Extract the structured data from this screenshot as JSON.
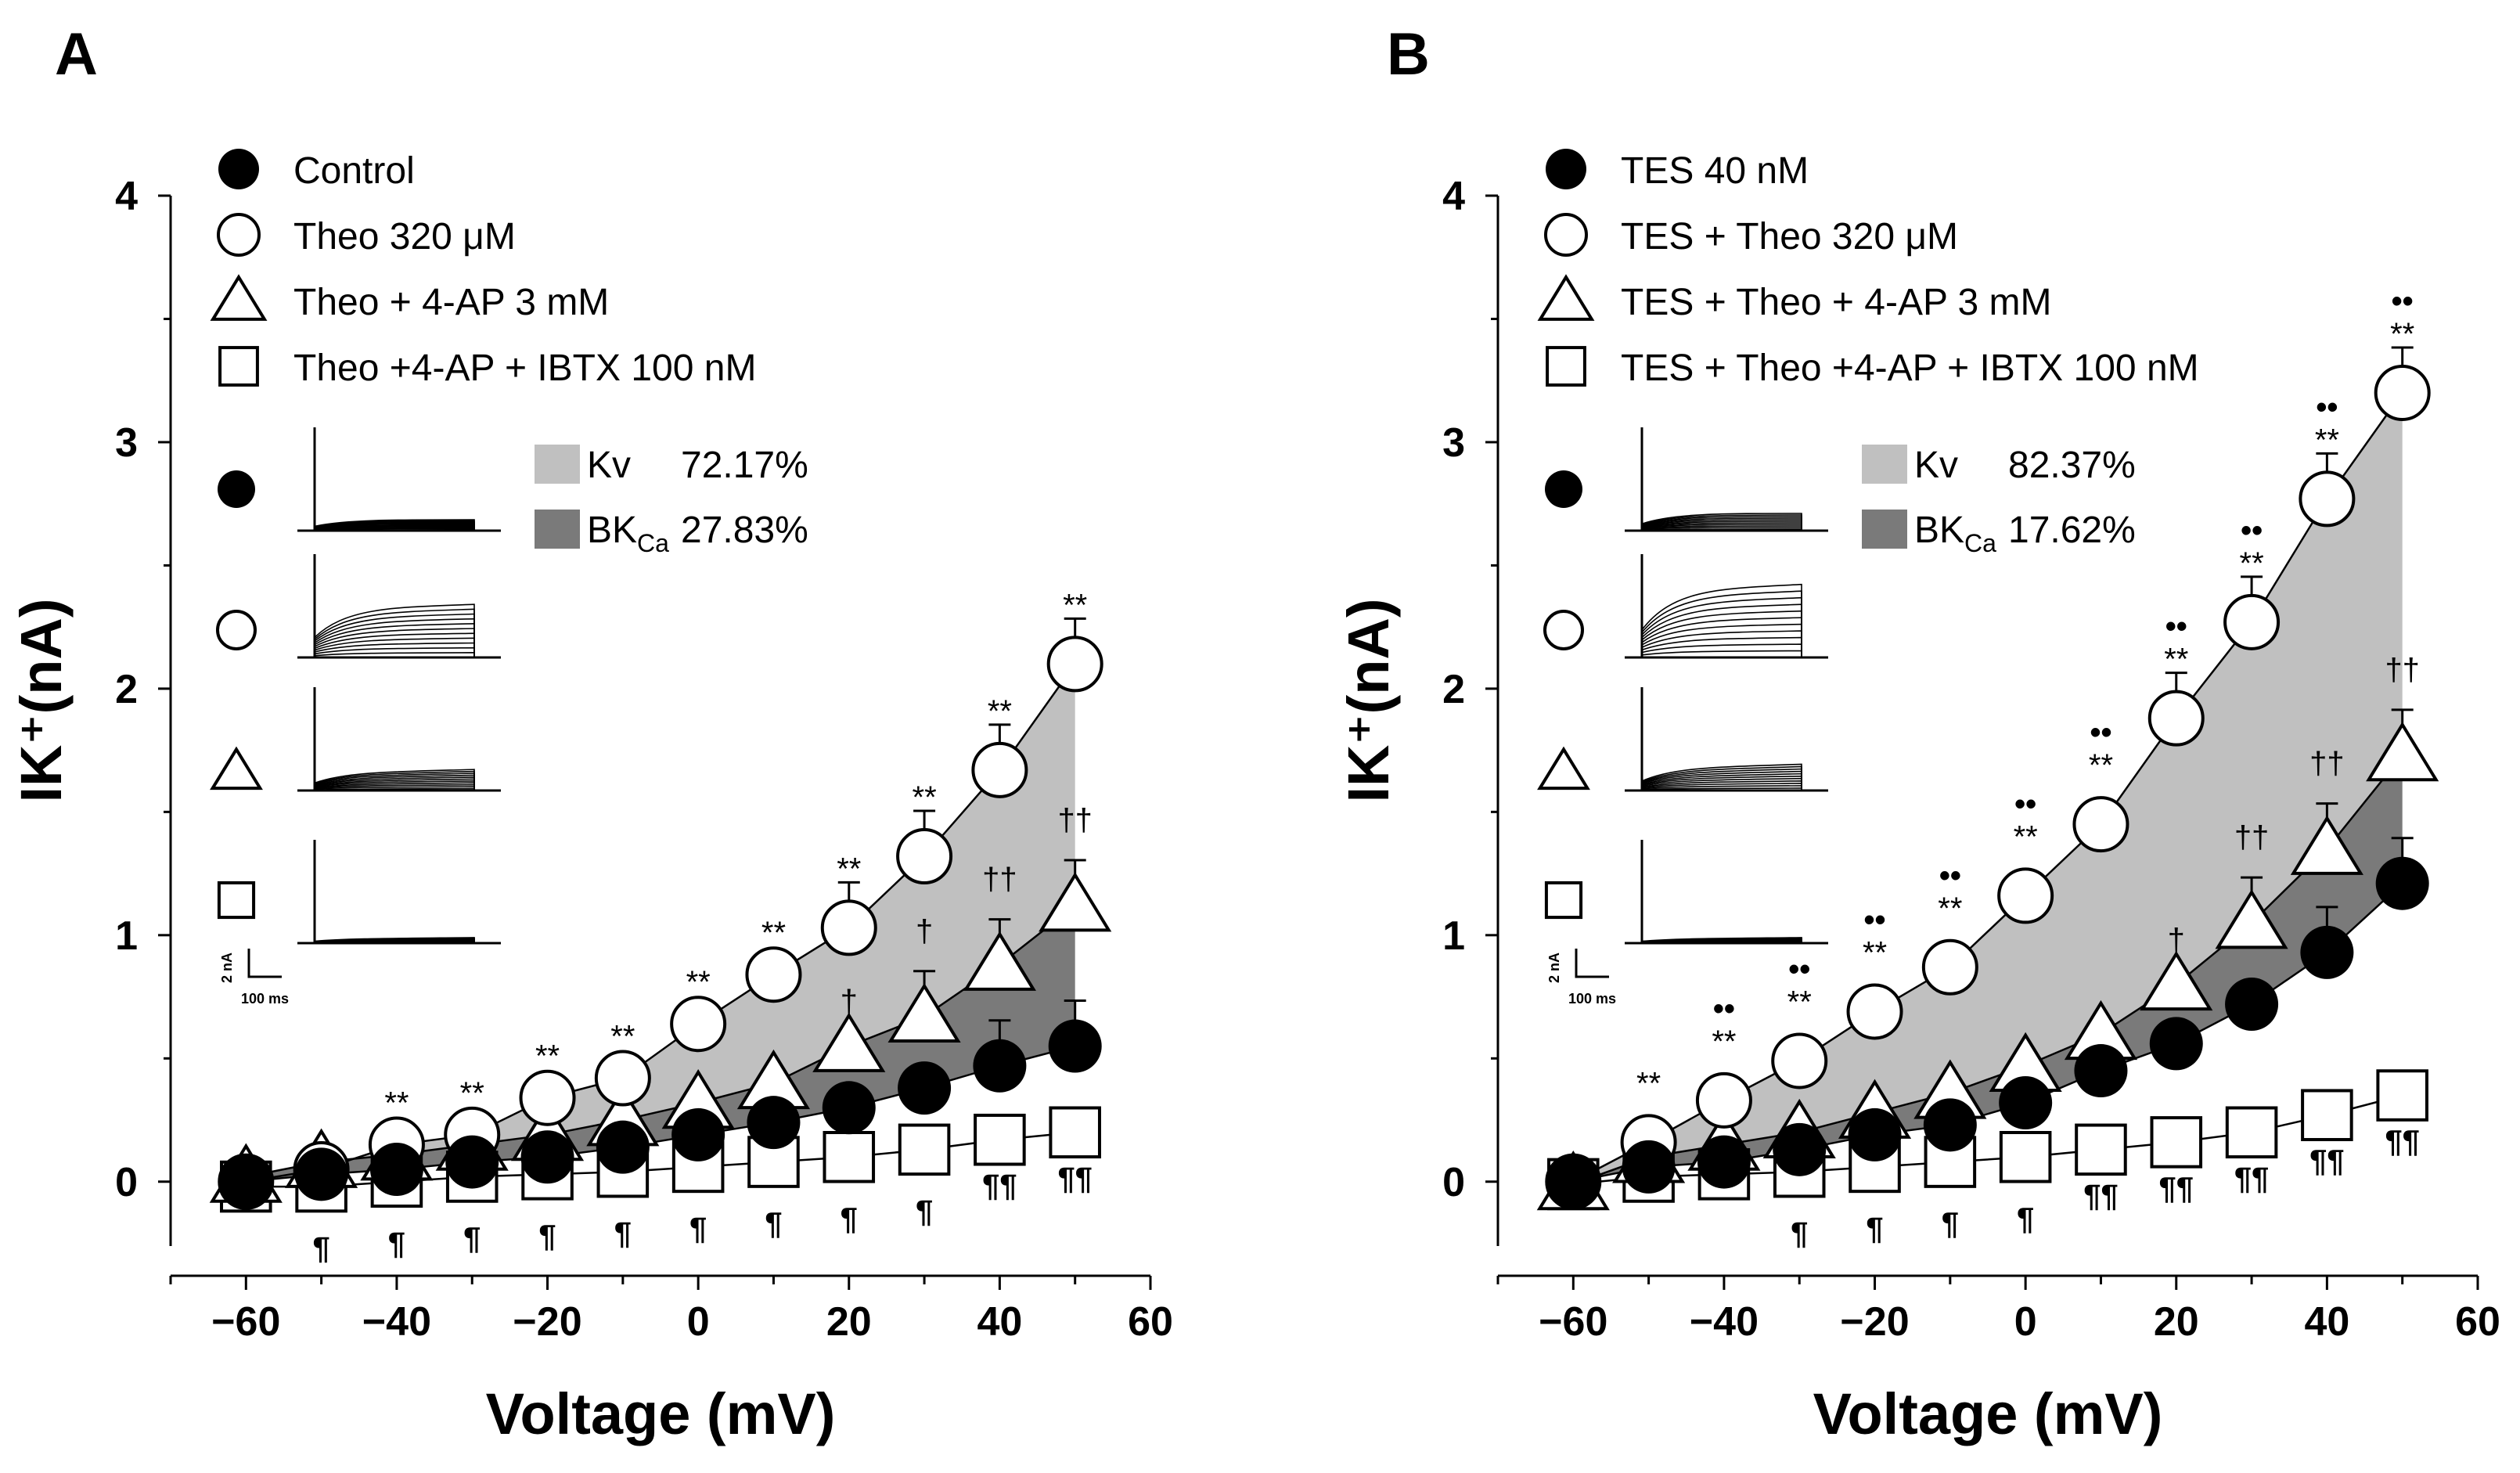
{
  "chart_data": [
    {
      "type": "line",
      "panel_label": "A",
      "xlabel": "Voltage (mV)",
      "ylabel": "IK⁺(nA)",
      "xlim": [
        -70,
        60
      ],
      "ylim": [
        -0.35,
        4.0
      ],
      "x_ticks": [
        -60,
        -40,
        -20,
        0,
        20,
        40,
        60
      ],
      "y_ticks": [
        0,
        1,
        2,
        3,
        4
      ],
      "x_tick_labels": [
        "−60",
        "−40",
        "−20",
        "0",
        "20",
        "40",
        "60"
      ],
      "y_tick_labels": [
        "0",
        "1",
        "2",
        "3",
        "4"
      ],
      "legend_position": "top-left",
      "x": [
        -60,
        -50,
        -40,
        -30,
        -20,
        -10,
        0,
        10,
        20,
        30,
        40,
        50
      ],
      "series": [
        {
          "name": "Control",
          "marker": "filled-circle",
          "values": [
            0.0,
            0.03,
            0.05,
            0.08,
            0.1,
            0.14,
            0.19,
            0.24,
            0.3,
            0.38,
            0.47,
            0.55
          ]
        },
        {
          "name": "Theo 320 μM",
          "marker": "open-circle",
          "values": [
            0.0,
            0.05,
            0.15,
            0.19,
            0.34,
            0.42,
            0.64,
            0.84,
            1.03,
            1.32,
            1.67,
            2.1
          ]
        },
        {
          "name": "Theo + 4-AP  3 mM",
          "marker": "open-triangle",
          "values": [
            0.02,
            0.08,
            0.11,
            0.15,
            0.19,
            0.25,
            0.32,
            0.4,
            0.55,
            0.67,
            0.88,
            1.12
          ]
        },
        {
          "name": "Theo +4-AP + IBTX  100 nM",
          "marker": "open-square",
          "values": [
            -0.02,
            -0.02,
            0.0,
            0.02,
            0.03,
            0.04,
            0.06,
            0.08,
            0.1,
            0.13,
            0.17,
            0.2
          ]
        }
      ],
      "shaded_regions": [
        {
          "name": "Kv",
          "percent": "72.17%",
          "between": [
            "Theo 320 μM",
            "Theo + 4-AP  3 mM"
          ]
        },
        {
          "name": "BK",
          "subscript": "Ca",
          "percent": "27.83%",
          "between": [
            "Theo + 4-AP  3 mM",
            "Control"
          ]
        }
      ],
      "annotations": {
        "double_star": {
          "symbol": "**",
          "x": [
            -40,
            -30,
            -20,
            -10,
            0,
            10,
            20,
            30,
            40,
            50
          ]
        },
        "dagger": {
          "single": [
            20,
            30
          ],
          "double": [
            40,
            50
          ]
        },
        "pilcrow": {
          "single": [
            -50,
            -40,
            -30,
            -20,
            -10,
            0,
            10,
            20,
            30
          ],
          "double": [
            40,
            50
          ]
        }
      },
      "inset": {
        "scale_current": "2 nA",
        "scale_time": "100 ms",
        "rows": [
          "filled-circle",
          "open-circle",
          "open-triangle",
          "open-square"
        ]
      }
    },
    {
      "type": "line",
      "panel_label": "B",
      "xlabel": "Voltage (mV)",
      "ylabel": "IK⁺(nA)",
      "xlim": [
        -70,
        60
      ],
      "ylim": [
        -0.35,
        4.0
      ],
      "x_ticks": [
        -60,
        -40,
        -20,
        0,
        20,
        40,
        60
      ],
      "y_ticks": [
        0,
        1,
        2,
        3,
        4
      ],
      "x_tick_labels": [
        "−60",
        "−40",
        "−20",
        "0",
        "20",
        "40",
        "60"
      ],
      "y_tick_labels": [
        "0",
        "1",
        "2",
        "3",
        "4"
      ],
      "legend_position": "top-left",
      "x": [
        -60,
        -50,
        -40,
        -30,
        -20,
        -10,
        0,
        10,
        20,
        30,
        40,
        50
      ],
      "series": [
        {
          "name": "TES 40 nM",
          "marker": "filled-circle",
          "values": [
            0.0,
            0.06,
            0.08,
            0.13,
            0.19,
            0.23,
            0.32,
            0.45,
            0.56,
            0.72,
            0.93,
            1.21
          ]
        },
        {
          "name": "TES + Theo 320 μM",
          "marker": "open-circle",
          "values": [
            0.0,
            0.16,
            0.33,
            0.49,
            0.69,
            0.87,
            1.16,
            1.45,
            1.88,
            2.27,
            2.77,
            3.2
          ]
        },
        {
          "name": "TES + Theo + 4-AP  3 mM",
          "marker": "open-triangle",
          "values": [
            -0.01,
            0.1,
            0.15,
            0.2,
            0.28,
            0.36,
            0.47,
            0.6,
            0.8,
            1.05,
            1.35,
            1.73
          ]
        },
        {
          "name": "TES + Theo +4-AP  + IBTX  100 nM",
          "marker": "open-square",
          "values": [
            -0.01,
            0.02,
            0.03,
            0.04,
            0.06,
            0.08,
            0.1,
            0.13,
            0.16,
            0.2,
            0.27,
            0.35
          ]
        }
      ],
      "shaded_regions": [
        {
          "name": "Kv",
          "percent": "82.37%",
          "between": [
            "TES + Theo 320 μM",
            "TES + Theo + 4-AP  3 mM"
          ]
        },
        {
          "name": "BK",
          "subscript": "Ca",
          "percent": "17.62%",
          "between": [
            "TES + Theo + 4-AP  3 mM",
            "TES 40 nM"
          ]
        }
      ],
      "annotations": {
        "double_star": {
          "symbol": "**",
          "x": [
            -50,
            -40,
            -30,
            -20,
            -10,
            0,
            10,
            20,
            30,
            40,
            50
          ]
        },
        "double_dot": {
          "symbol": "••",
          "x": [
            -40,
            -30,
            -20,
            -10,
            0,
            10,
            20,
            30,
            40,
            50
          ]
        },
        "dagger": {
          "single": [
            20
          ],
          "double": [
            30,
            40,
            50
          ]
        },
        "pilcrow": {
          "single": [
            -30,
            -20,
            -10,
            0
          ],
          "double": [
            10,
            20,
            30,
            40,
            50
          ]
        }
      },
      "inset": {
        "scale_current": "2 nA",
        "scale_time": "100 ms",
        "rows": [
          "filled-circle",
          "open-circle",
          "open-triangle",
          "open-square"
        ]
      }
    }
  ],
  "colors": {
    "kv_fill": "#c0c0c0",
    "bk_fill": "#7a7a7a",
    "ink": "#000000",
    "paper": "#ffffff"
  }
}
